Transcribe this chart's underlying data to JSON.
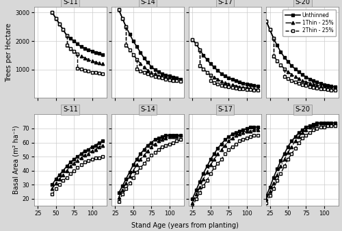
{
  "site_indices": [
    "S-11",
    "S-14",
    "S-17",
    "S-20"
  ],
  "bg_color": "#e0e0e0",
  "panel_bg": "#ffffff",
  "grid_color": "#cccccc",
  "trees": {
    "S-11": {
      "u_ages": [
        45,
        50,
        55,
        60,
        65,
        70,
        75,
        80,
        85,
        90,
        95,
        100,
        105,
        110,
        115
      ],
      "u_vals": [
        3000,
        2800,
        2600,
        2400,
        2200,
        2100,
        2000,
        1900,
        1800,
        1750,
        1700,
        1650,
        1600,
        1560,
        1520
      ],
      "t1_pre_ages": [
        45,
        50,
        55,
        60,
        65
      ],
      "t1_pre_vals": [
        3000,
        2800,
        2600,
        2400,
        2200
      ],
      "t1_drop": [
        65,
        65
      ],
      "t1_drop_vals": [
        2200,
        1850
      ],
      "t1_post_ages": [
        65,
        70,
        75,
        80,
        85,
        90,
        95,
        100,
        105,
        110,
        115
      ],
      "t1_post_vals": [
        1850,
        1750,
        1650,
        1550,
        1480,
        1410,
        1350,
        1300,
        1260,
        1230,
        1200
      ],
      "t2_pre_ages": [
        45,
        50,
        55,
        60,
        65
      ],
      "t2_pre_vals": [
        3000,
        2800,
        2600,
        2400,
        2200
      ],
      "t2_drop1": [
        65,
        65
      ],
      "t2_drop1_vals": [
        2200,
        1850
      ],
      "t2_mid_ages": [
        65,
        70,
        75,
        80
      ],
      "t2_mid_vals": [
        1850,
        1750,
        1650,
        1550
      ],
      "t2_drop2": [
        80,
        80
      ],
      "t2_drop2_vals": [
        1550,
        1050
      ],
      "t2_post_ages": [
        80,
        85,
        90,
        95,
        100,
        105,
        110,
        115
      ],
      "t2_post_vals": [
        1050,
        1010,
        970,
        940,
        910,
        890,
        875,
        860
      ]
    },
    "S-14": {
      "u_ages": [
        30,
        35,
        40,
        45,
        50,
        55,
        60,
        65,
        70,
        75,
        80,
        85,
        90,
        95,
        100,
        105,
        110,
        115
      ],
      "u_vals": [
        3100,
        2800,
        2500,
        2250,
        2000,
        1800,
        1600,
        1400,
        1250,
        1100,
        1000,
        920,
        860,
        810,
        770,
        740,
        700,
        670
      ],
      "t1_pre_ages": [
        30,
        35,
        40
      ],
      "t1_pre_vals": [
        3100,
        2800,
        2500
      ],
      "t1_drop": [
        40,
        40
      ],
      "t1_drop_vals": [
        2500,
        1870
      ],
      "t1_post_ages": [
        40,
        45,
        50,
        55,
        60,
        65,
        70,
        75,
        80,
        85,
        90,
        95,
        100,
        105,
        110,
        115
      ],
      "t1_post_vals": [
        1870,
        1700,
        1530,
        1360,
        1210,
        1080,
        980,
        900,
        840,
        790,
        750,
        720,
        690,
        660,
        640,
        620
      ],
      "t2_pre_ages": [
        30,
        35,
        40
      ],
      "t2_pre_vals": [
        3100,
        2800,
        2500
      ],
      "t2_drop1": [
        40,
        40
      ],
      "t2_drop1_vals": [
        2500,
        1870
      ],
      "t2_mid_ages": [
        40,
        45,
        50,
        55
      ],
      "t2_mid_vals": [
        1870,
        1700,
        1530,
        1360
      ],
      "t2_drop2": [
        55,
        55
      ],
      "t2_drop2_vals": [
        1360,
        1020
      ],
      "t2_post_ages": [
        55,
        60,
        65,
        70,
        75,
        80,
        85,
        90,
        95,
        100,
        105,
        110,
        115
      ],
      "t2_post_vals": [
        1020,
        950,
        890,
        840,
        800,
        760,
        730,
        700,
        670,
        640,
        620,
        600,
        580
      ]
    },
    "S-17": {
      "u_ages": [
        25,
        30,
        35,
        40,
        45,
        50,
        55,
        60,
        65,
        70,
        75,
        80,
        85,
        90,
        95,
        100,
        105,
        110,
        115
      ],
      "u_vals": [
        2050,
        1900,
        1700,
        1500,
        1350,
        1200,
        1080,
        960,
        860,
        780,
        710,
        650,
        600,
        560,
        520,
        490,
        460,
        440,
        420
      ],
      "t1_pre_ages": [
        25,
        30,
        35
      ],
      "t1_pre_vals": [
        2050,
        1900,
        1700
      ],
      "t1_drop": [
        35,
        35
      ],
      "t1_drop_vals": [
        1700,
        1150
      ],
      "t1_post_ages": [
        35,
        40,
        45,
        50,
        55,
        60,
        65,
        70,
        75,
        80,
        85,
        90,
        95,
        100,
        105,
        110,
        115
      ],
      "t1_post_vals": [
        1150,
        1020,
        910,
        810,
        730,
        650,
        590,
        540,
        500,
        460,
        430,
        400,
        380,
        360,
        340,
        320,
        305
      ],
      "t2_pre_ages": [
        25,
        30,
        35
      ],
      "t2_pre_vals": [
        2050,
        1900,
        1700
      ],
      "t2_drop1": [
        35,
        35
      ],
      "t2_drop1_vals": [
        1700,
        1150
      ],
      "t2_mid_ages": [
        35,
        40,
        45,
        50
      ],
      "t2_mid_vals": [
        1150,
        1020,
        910,
        810
      ],
      "t2_drop2": [
        50,
        50
      ],
      "t2_drop2_vals": [
        810,
        600
      ],
      "t2_post_ages": [
        50,
        55,
        60,
        65,
        70,
        75,
        80,
        85,
        90,
        95,
        100,
        105,
        110,
        115
      ],
      "t2_post_vals": [
        600,
        540,
        490,
        450,
        420,
        390,
        370,
        350,
        335,
        320,
        305,
        290,
        278,
        265
      ]
    },
    "S-20": {
      "u_ages": [
        20,
        25,
        30,
        35,
        40,
        45,
        50,
        55,
        60,
        65,
        70,
        75,
        80,
        85,
        90,
        95,
        100,
        105,
        110,
        115
      ],
      "u_vals": [
        2700,
        2400,
        2100,
        1850,
        1620,
        1430,
        1280,
        1140,
        1020,
        920,
        820,
        740,
        670,
        610,
        560,
        515,
        475,
        445,
        415,
        390
      ],
      "t1_pre_ages": [
        20,
        25,
        30
      ],
      "t1_pre_vals": [
        2700,
        2400,
        2100
      ],
      "t1_drop": [
        30,
        30
      ],
      "t1_drop_vals": [
        2100,
        1480
      ],
      "t1_post_ages": [
        30,
        35,
        40,
        45,
        50,
        55,
        60,
        65,
        70,
        75,
        80,
        85,
        90,
        95,
        100,
        105,
        110,
        115
      ],
      "t1_post_vals": [
        1480,
        1310,
        1160,
        1030,
        920,
        830,
        750,
        680,
        620,
        570,
        525,
        490,
        455,
        425,
        400,
        375,
        355,
        335
      ],
      "t2_pre_ages": [
        20,
        25,
        30
      ],
      "t2_pre_vals": [
        2700,
        2400,
        2100
      ],
      "t2_drop1": [
        30,
        30
      ],
      "t2_drop1_vals": [
        2100,
        1480
      ],
      "t2_mid_ages": [
        30,
        35,
        40,
        45
      ],
      "t2_mid_vals": [
        1480,
        1310,
        1160,
        1030
      ],
      "t2_drop2": [
        45,
        45
      ],
      "t2_drop2_vals": [
        1030,
        760
      ],
      "t2_post_ages": [
        45,
        50,
        55,
        60,
        65,
        70,
        75,
        80,
        85,
        90,
        95,
        100,
        105,
        110,
        115
      ],
      "t2_post_vals": [
        760,
        680,
        615,
        560,
        510,
        470,
        435,
        405,
        380,
        355,
        335,
        315,
        300,
        285,
        272
      ]
    }
  },
  "basal": {
    "S-11": {
      "ages": [
        45,
        50,
        55,
        60,
        65,
        70,
        75,
        80,
        85,
        90,
        95,
        100,
        105,
        110,
        115
      ],
      "unthinned": [
        30,
        34,
        37,
        40,
        43,
        46,
        48,
        50,
        52,
        54,
        55,
        57,
        58,
        60,
        61
      ],
      "t1": [
        27,
        31,
        34,
        37,
        40,
        43,
        45,
        47,
        49,
        51,
        52,
        54,
        55,
        57,
        58
      ],
      "t2": [
        23,
        27,
        30,
        33,
        35,
        38,
        40,
        42,
        44,
        46,
        47,
        48,
        49,
        49,
        50
      ]
    },
    "S-14": {
      "ages": [
        30,
        35,
        40,
        45,
        50,
        55,
        60,
        65,
        70,
        75,
        80,
        85,
        90,
        95,
        100,
        105,
        110,
        115
      ],
      "unthinned": [
        24,
        29,
        34,
        39,
        44,
        48,
        52,
        55,
        58,
        60,
        62,
        63,
        64,
        65,
        65,
        65,
        65,
        65
      ],
      "t1": [
        21,
        26,
        31,
        36,
        40,
        44,
        48,
        51,
        54,
        57,
        59,
        61,
        62,
        63,
        64,
        64,
        64,
        65
      ],
      "t2": [
        18,
        23,
        27,
        31,
        35,
        39,
        42,
        45,
        48,
        51,
        53,
        55,
        57,
        58,
        59,
        60,
        61,
        62
      ]
    },
    "S-17": {
      "ages": [
        25,
        30,
        35,
        40,
        45,
        50,
        55,
        60,
        65,
        70,
        75,
        80,
        85,
        90,
        95,
        100,
        105,
        110,
        115
      ],
      "unthinned": [
        20,
        26,
        32,
        38,
        43,
        48,
        52,
        56,
        59,
        62,
        64,
        66,
        67,
        68,
        69,
        70,
        71,
        71,
        71
      ],
      "t1": [
        17,
        23,
        28,
        34,
        39,
        44,
        48,
        52,
        55,
        58,
        61,
        63,
        65,
        66,
        67,
        68,
        68,
        69,
        69
      ],
      "t2": [
        14,
        20,
        24,
        29,
        33,
        38,
        42,
        45,
        48,
        52,
        55,
        57,
        59,
        61,
        62,
        63,
        64,
        65,
        65
      ]
    },
    "S-20": {
      "ages": [
        20,
        25,
        30,
        35,
        40,
        45,
        50,
        55,
        60,
        65,
        70,
        75,
        80,
        85,
        90,
        95,
        100,
        105,
        110,
        115
      ],
      "unthinned": [
        22,
        28,
        35,
        41,
        47,
        52,
        57,
        61,
        64,
        67,
        69,
        71,
        72,
        73,
        74,
        74,
        74,
        74,
        74,
        74
      ],
      "t1": [
        20,
        25,
        31,
        37,
        43,
        48,
        53,
        57,
        61,
        64,
        67,
        69,
        71,
        72,
        73,
        74,
        74,
        74,
        74,
        74
      ],
      "t2": [
        17,
        22,
        27,
        33,
        38,
        43,
        48,
        52,
        56,
        60,
        63,
        65,
        67,
        69,
        70,
        71,
        71,
        72,
        72,
        72
      ]
    }
  },
  "xlim": [
    20,
    120
  ],
  "xticks": [
    25,
    50,
    75,
    100
  ],
  "trees_ylim": [
    0,
    3200
  ],
  "trees_yticks": [
    1000,
    2000,
    3000
  ],
  "basal_ylim": [
    15,
    80
  ],
  "basal_yticks": [
    20,
    30,
    40,
    50,
    60,
    70
  ],
  "color": "#000000",
  "ylabel_top": "Trees per Hectare",
  "ylabel_bottom": "Basal Area (m² ha⁻¹)",
  "xlabel": "Stand Age (years from planting)"
}
